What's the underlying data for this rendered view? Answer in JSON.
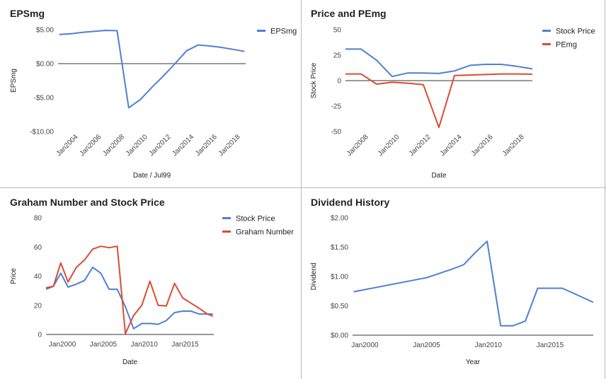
{
  "colors": {
    "blue": "#4f7fd6",
    "red": "#dc4b32",
    "axis": "#333333",
    "grid": "#e6e6e6",
    "divider": "#b9b9b9"
  },
  "chart_data": [
    {
      "id": "eps",
      "type": "line",
      "title": "EPSmg",
      "xlabel": "Date / Jul99",
      "ylabel": "EPSmg",
      "x_ticks": [
        "Jan2004",
        "Jan2006",
        "Jan2008",
        "Jan2010",
        "Jan2012",
        "Jan2014",
        "Jan2016",
        "Jan2018"
      ],
      "x_tick_values": [
        2004,
        2006,
        2008,
        2010,
        2012,
        2014,
        2016,
        2018
      ],
      "xlim": [
        2002.5,
        2018.7
      ],
      "ylim": [
        -10,
        5
      ],
      "y_ticks": [
        5,
        0,
        -5,
        -10
      ],
      "y_tick_labels": [
        "$5.00",
        "$0.00",
        "-$5.00",
        "-$10.00"
      ],
      "zero_line": true,
      "legend": "top-right",
      "series": [
        {
          "name": "EPSmg",
          "color": "blue",
          "x": [
            2002.6,
            2003.6,
            2004.6,
            2005.6,
            2006.6,
            2007.6,
            2008.6,
            2009.6,
            2010.6,
            2011.6,
            2012.6,
            2013.6,
            2014.6,
            2015.6,
            2016.6,
            2017.6,
            2018.6
          ],
          "y": [
            4.3,
            4.4,
            4.6,
            4.75,
            4.9,
            4.85,
            -6.5,
            -5.3,
            -3.5,
            -1.8,
            0.0,
            1.9,
            2.75,
            2.6,
            2.4,
            2.1,
            1.8
          ]
        }
      ]
    },
    {
      "id": "pe",
      "type": "line",
      "title": "Price and PEmg",
      "xlabel": "Date",
      "ylabel": "Stock Price",
      "x_ticks": [
        "Jan2008",
        "Jan2010",
        "Jan2012",
        "Jan2014",
        "Jan2016",
        "Jan2018"
      ],
      "x_tick_values": [
        2008,
        2010,
        2012,
        2014,
        2016,
        2018
      ],
      "xlim": [
        2006.7,
        2018.7
      ],
      "ylim": [
        -50,
        50
      ],
      "y_ticks": [
        50,
        25,
        0,
        -25,
        -50
      ],
      "y_tick_labels": [
        "50",
        "25",
        "0",
        "-25",
        "-50"
      ],
      "zero_line": true,
      "legend": "top-right",
      "series": [
        {
          "name": "Stock Price",
          "color": "blue",
          "x": [
            2006.7,
            2007.7,
            2008.7,
            2009.7,
            2010.7,
            2011.7,
            2012.7,
            2013.7,
            2014.7,
            2015.7,
            2016.7,
            2017.7,
            2018.7
          ],
          "y": [
            31,
            31,
            20,
            4,
            7.5,
            7.5,
            7,
            9.5,
            15,
            16,
            16,
            14,
            11.5
          ]
        },
        {
          "name": "PEmg",
          "color": "red",
          "x": [
            2006.7,
            2007.7,
            2008.7,
            2009.7,
            2010.7,
            2011.7,
            2012.7,
            2013.7,
            2014.7,
            2015.7,
            2016.7,
            2017.7,
            2018.7
          ],
          "y": [
            6.5,
            6.5,
            -3.5,
            -1.5,
            -2.5,
            -4,
            -46,
            5,
            5.5,
            6,
            6.5,
            6.5,
            6.3
          ]
        }
      ]
    },
    {
      "id": "graham",
      "type": "line",
      "title": "Graham Number and Stock Price",
      "xlabel": "Date",
      "ylabel": "Price",
      "x_ticks": [
        "Jan2000",
        "Jan2005",
        "Jan2010",
        "Jan2015"
      ],
      "x_tick_values": [
        2000,
        2005,
        2010,
        2015
      ],
      "xlim": [
        1998.0,
        2018.5
      ],
      "ylim": [
        0,
        80
      ],
      "y_ticks": [
        80,
        60,
        40,
        20,
        0
      ],
      "y_tick_labels": [
        "80",
        "60",
        "40",
        "20",
        "0"
      ],
      "zero_line": false,
      "legend": "top-right",
      "series": [
        {
          "name": "Stock Price",
          "color": "blue",
          "x": [
            1998.0,
            1998.9,
            1999.8,
            2000.7,
            2001.7,
            2002.7,
            2003.7,
            2004.7,
            2005.7,
            2006.7,
            2007.7,
            2008.7,
            2009.7,
            2010.7,
            2011.7,
            2012.7,
            2013.7,
            2014.7,
            2015.7,
            2016.7,
            2017.7,
            2018.4
          ],
          "y": [
            31,
            33,
            42,
            32.5,
            34.5,
            37,
            46,
            42,
            31,
            31,
            19,
            4,
            7.5,
            7.5,
            7,
            9.5,
            15,
            16,
            16,
            14,
            14,
            14
          ]
        },
        {
          "name": "Graham Number",
          "color": "red",
          "x": [
            1998.0,
            1998.9,
            1999.8,
            2000.7,
            2001.7,
            2002.7,
            2003.7,
            2004.7,
            2005.7,
            2006.7,
            2007.7,
            2008.7,
            2009.7,
            2010.7,
            2011.7,
            2012.7,
            2013.7,
            2014.7,
            2015.7,
            2016.7,
            2017.7,
            2018.4
          ],
          "y": [
            32,
            33,
            49,
            36,
            46,
            51,
            58.5,
            60.5,
            59.5,
            60.5,
            0.5,
            13,
            20,
            36.5,
            20,
            19.5,
            35,
            25,
            21.5,
            18,
            14,
            12.5
          ]
        }
      ]
    },
    {
      "id": "dividend",
      "type": "line",
      "title": "Dividend History",
      "xlabel": "Year",
      "ylabel": "Dividend",
      "x_ticks": [
        "Jan2000",
        "Jan2005",
        "Jan2010",
        "Jan2015"
      ],
      "x_tick_values": [
        2000,
        2005,
        2010,
        2015
      ],
      "xlim": [
        1999.0,
        2018.5
      ],
      "ylim": [
        0,
        2
      ],
      "y_ticks": [
        2,
        1.5,
        1,
        0.5,
        0
      ],
      "y_tick_labels": [
        "$2.00",
        "$1.50",
        "$1.00",
        "$0.50",
        "$0.00"
      ],
      "zero_line": false,
      "legend": "none",
      "series": [
        {
          "name": "",
          "color": "blue",
          "x": [
            1999.1,
            2005.0,
            2006.0,
            2007.0,
            2008.0,
            2009.0,
            2009.9,
            2011.0,
            2012.0,
            2013.0,
            2014.0,
            2015.0,
            2016.0,
            2018.5
          ],
          "y": [
            0.74,
            0.98,
            1.05,
            1.12,
            1.2,
            1.42,
            1.6,
            0.16,
            0.16,
            0.24,
            0.8,
            0.8,
            0.8,
            0.56
          ]
        }
      ]
    }
  ]
}
